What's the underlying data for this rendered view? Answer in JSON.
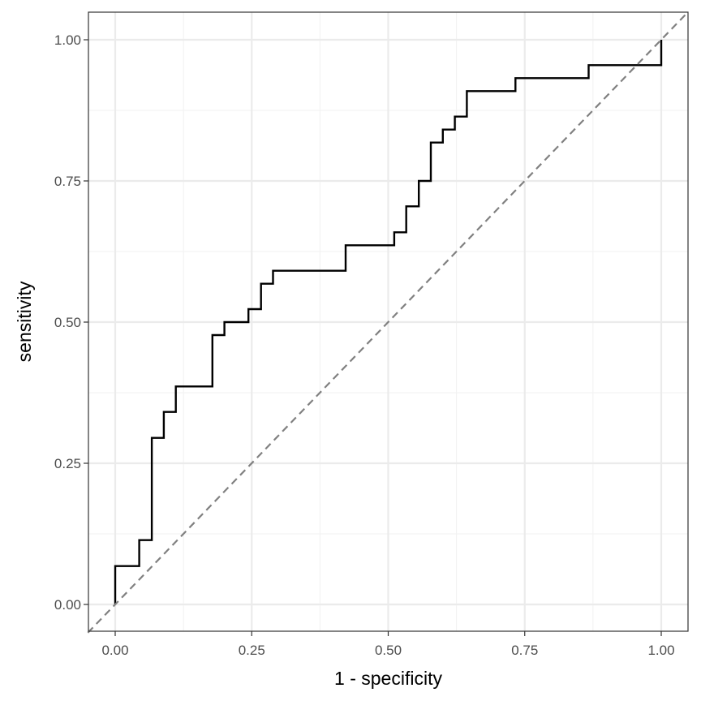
{
  "chart_data": {
    "type": "line",
    "title": "",
    "xlabel": "1 - specificity",
    "ylabel": "sensitivity",
    "xlim": [
      0,
      1
    ],
    "ylim": [
      0,
      1
    ],
    "grid": true,
    "x_ticks": [
      0,
      0.25,
      0.5,
      0.75,
      1
    ],
    "y_ticks": [
      0,
      0.25,
      0.5,
      0.75,
      1
    ],
    "x_tick_labels": [
      "0.00",
      "0.25",
      "0.50",
      "0.75",
      "1.00"
    ],
    "y_tick_labels": [
      "0.00",
      "0.25",
      "0.50",
      "0.75",
      "1.00"
    ],
    "series": [
      {
        "line_style": "step",
        "color": "#000000",
        "points": [
          [
            0,
            0
          ],
          [
            0,
            0.068
          ],
          [
            0.044,
            0.068
          ],
          [
            0.044,
            0.114
          ],
          [
            0.067,
            0.114
          ],
          [
            0.067,
            0.295
          ],
          [
            0.089,
            0.295
          ],
          [
            0.089,
            0.341
          ],
          [
            0.111,
            0.341
          ],
          [
            0.111,
            0.386
          ],
          [
            0.178,
            0.386
          ],
          [
            0.178,
            0.477
          ],
          [
            0.2,
            0.477
          ],
          [
            0.2,
            0.5
          ],
          [
            0.244,
            0.5
          ],
          [
            0.244,
            0.523
          ],
          [
            0.267,
            0.523
          ],
          [
            0.267,
            0.568
          ],
          [
            0.289,
            0.568
          ],
          [
            0.289,
            0.591
          ],
          [
            0.422,
            0.591
          ],
          [
            0.422,
            0.636
          ],
          [
            0.511,
            0.636
          ],
          [
            0.511,
            0.659
          ],
          [
            0.533,
            0.659
          ],
          [
            0.533,
            0.705
          ],
          [
            0.556,
            0.705
          ],
          [
            0.556,
            0.75
          ],
          [
            0.578,
            0.75
          ],
          [
            0.578,
            0.818
          ],
          [
            0.6,
            0.818
          ],
          [
            0.6,
            0.841
          ],
          [
            0.622,
            0.841
          ],
          [
            0.622,
            0.864
          ],
          [
            0.644,
            0.864
          ],
          [
            0.644,
            0.909
          ],
          [
            0.733,
            0.909
          ],
          [
            0.733,
            0.932
          ],
          [
            0.867,
            0.932
          ],
          [
            0.867,
            0.955
          ],
          [
            1,
            0.955
          ],
          [
            1,
            1
          ]
        ]
      },
      {
        "line_style": "dashed",
        "color": "#808080",
        "points": [
          [
            -0.05,
            -0.05
          ],
          [
            1.05,
            1.05
          ]
        ]
      }
    ],
    "colors": {
      "panel_border": "#333333",
      "grid_major": "#ebebeb",
      "grid_minor": "#f2f2f2",
      "tick": "#333333"
    }
  }
}
